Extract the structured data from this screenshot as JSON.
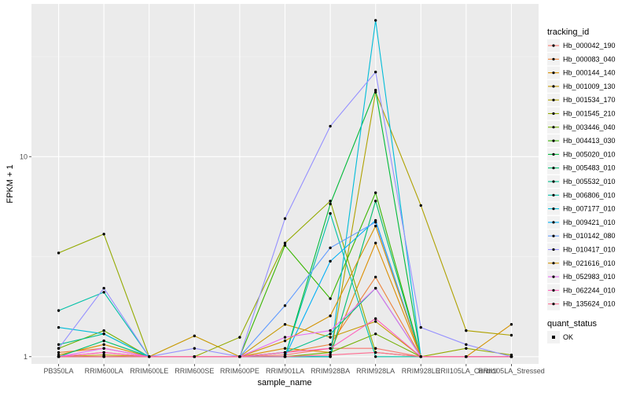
{
  "chart_data": {
    "type": "line",
    "xlabel": "sample_name",
    "ylabel": "FPKM + 1",
    "y_scale": "log",
    "ylim": [
      0.92,
      58
    ],
    "y_ticks": [
      {
        "value": 1,
        "label": "1"
      },
      {
        "value": 10,
        "label": "10"
      }
    ],
    "grid": true,
    "background": "#EBEBEB",
    "categories": [
      "PB350LA",
      "RRIM600LA",
      "RRIM600LE",
      "RRIM600SE",
      "RRIM600PE",
      "RRIM901LA",
      "RRIM928BA",
      "RRIM928LA",
      "RRIM928LE",
      "RRII105LA_Control",
      "RRII105LA_Stressed"
    ],
    "legend": {
      "title": "tracking_id",
      "position": "right"
    },
    "shape_legend": {
      "title": "quant_status",
      "items": [
        "OK"
      ]
    },
    "series": [
      {
        "name": "Hb_000042_190",
        "color": "#F8766D",
        "values": [
          1.0,
          1.05,
          1.0,
          1.0,
          1.0,
          1.02,
          1.1,
          1.1,
          1.0,
          1.0,
          1.0
        ]
      },
      {
        "name": "Hb_000083_040",
        "color": "#EC8239",
        "values": [
          1.05,
          1.1,
          1.0,
          1.0,
          1.0,
          1.05,
          1.15,
          2.5,
          1.0,
          1.0,
          1.0
        ]
      },
      {
        "name": "Hb_000144_140",
        "color": "#DB8E00",
        "values": [
          1.02,
          1.15,
          1.0,
          1.0,
          1.0,
          1.1,
          1.05,
          3.7,
          1.0,
          1.0,
          1.0
        ]
      },
      {
        "name": "Hb_001009_130",
        "color": "#C79800",
        "values": [
          1.0,
          1.02,
          1.0,
          1.27,
          1.0,
          1.45,
          1.25,
          1.5,
          1.0,
          1.0,
          1.0
        ]
      },
      {
        "name": "Hb_001534_170",
        "color": "#AFA100",
        "values": [
          1.0,
          1.0,
          1.0,
          1.0,
          1.0,
          1.0,
          1.0,
          21.0,
          5.7,
          1.35,
          1.28
        ]
      },
      {
        "name": "Hb_001545_210",
        "color": "#93AA00",
        "values": [
          3.3,
          4.1,
          1.0,
          1.0,
          1.25,
          3.7,
          6.0,
          1.05,
          1.0,
          1.1,
          1.02
        ]
      },
      {
        "name": "Hb_003446_040",
        "color": "#72B000",
        "values": [
          1.1,
          1.35,
          1.0,
          1.0,
          1.0,
          1.0,
          1.05,
          1.3,
          1.0,
          1.0,
          1.0
        ]
      },
      {
        "name": "Hb_004413_030",
        "color": "#39B600",
        "values": [
          1.0,
          1.0,
          1.0,
          1.0,
          1.0,
          3.6,
          1.95,
          6.6,
          1.0,
          1.0,
          1.0
        ]
      },
      {
        "name": "Hb_005020_010",
        "color": "#00BA38",
        "values": [
          1.0,
          1.0,
          1.0,
          1.0,
          1.0,
          1.0,
          5.8,
          21.5,
          1.0,
          1.0,
          1.0
        ]
      },
      {
        "name": "Hb_005483_010",
        "color": "#00BE6C",
        "values": [
          1.0,
          1.2,
          1.0,
          1.0,
          1.0,
          1.0,
          1.0,
          6.0,
          1.0,
          1.0,
          1.0
        ]
      },
      {
        "name": "Hb_005532_010",
        "color": "#00C08B",
        "values": [
          1.15,
          1.3,
          1.0,
          1.0,
          1.0,
          1.05,
          1.3,
          2.2,
          1.0,
          1.0,
          1.0
        ]
      },
      {
        "name": "Hb_006806_010",
        "color": "#00C1A7",
        "values": [
          1.7,
          2.1,
          1.0,
          1.0,
          1.0,
          1.0,
          5.2,
          1.0,
          1.0,
          1.0,
          1.0
        ]
      },
      {
        "name": "Hb_007177_010",
        "color": "#00BCD8",
        "values": [
          1.4,
          1.3,
          1.0,
          1.0,
          1.0,
          1.0,
          1.0,
          48.0,
          1.0,
          1.0,
          1.0
        ]
      },
      {
        "name": "Hb_009421_010",
        "color": "#00B0F6",
        "values": [
          1.0,
          1.0,
          1.0,
          1.0,
          1.0,
          1.0,
          3.0,
          4.8,
          1.0,
          1.0,
          1.0
        ]
      },
      {
        "name": "Hb_010142_080",
        "color": "#619CFF",
        "values": [
          1.0,
          1.0,
          1.0,
          1.0,
          1.0,
          1.8,
          3.5,
          4.7,
          1.0,
          1.0,
          1.0
        ]
      },
      {
        "name": "Hb_010417_010",
        "color": "#9590FF",
        "values": [
          1.1,
          2.2,
          1.0,
          1.1,
          1.0,
          4.9,
          14.2,
          26.5,
          1.4,
          1.15,
          1.0
        ]
      },
      {
        "name": "Hb_021616_010",
        "color": "#D39200",
        "values": [
          1.0,
          1.0,
          1.0,
          1.0,
          1.0,
          1.2,
          1.6,
          4.5,
          1.0,
          1.0,
          1.45
        ]
      },
      {
        "name": "Hb_052983_010",
        "color": "#E76BF3",
        "values": [
          1.0,
          1.1,
          1.0,
          1.0,
          1.0,
          1.25,
          1.35,
          2.2,
          1.0,
          1.0,
          1.0
        ]
      },
      {
        "name": "Hb_062244_010",
        "color": "#FF62BC",
        "values": [
          1.0,
          1.05,
          1.0,
          1.0,
          1.0,
          1.05,
          1.1,
          1.55,
          1.0,
          1.0,
          1.0
        ]
      },
      {
        "name": "Hb_135624_010",
        "color": "#FF6C91",
        "values": [
          1.0,
          1.0,
          1.0,
          1.0,
          1.0,
          1.0,
          1.02,
          1.05,
          1.0,
          1.0,
          1.0
        ]
      }
    ]
  }
}
